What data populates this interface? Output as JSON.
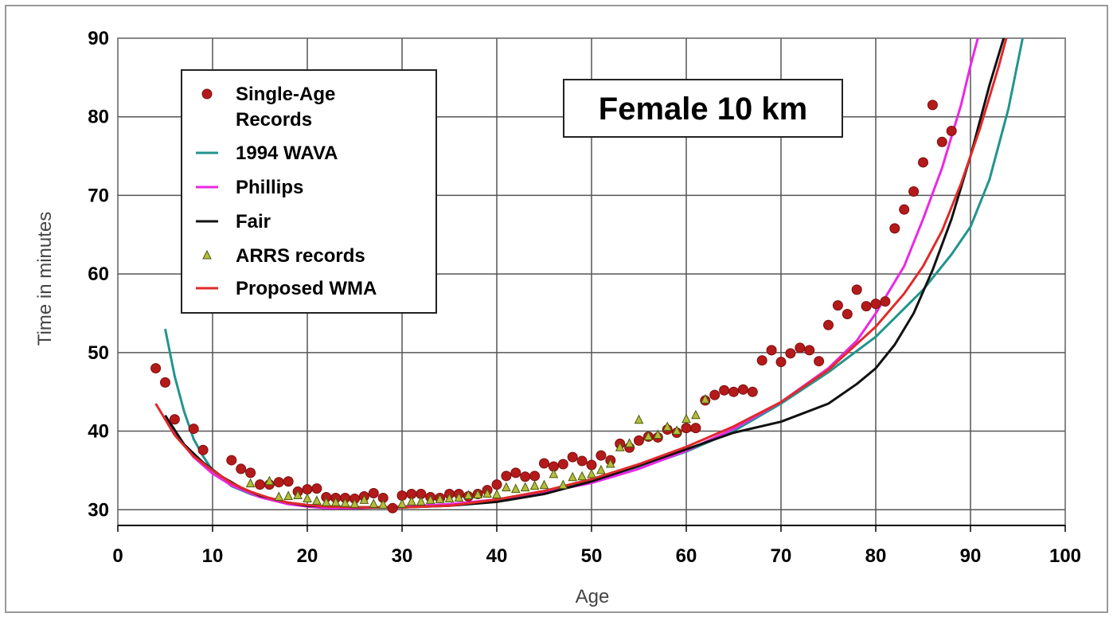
{
  "chart_data": {
    "type": "scatter",
    "title": "Female 10 km",
    "xlabel": "Age",
    "ylabel": "Time in minutes",
    "xlim": [
      0,
      100
    ],
    "ylim": [
      28,
      90
    ],
    "x_ticks": [
      0,
      10,
      20,
      30,
      40,
      50,
      60,
      70,
      80,
      90,
      100
    ],
    "y_ticks": [
      30,
      40,
      50,
      60,
      70,
      80,
      90
    ],
    "grid": true,
    "legend_position": "top-left",
    "series": [
      {
        "name": "Single-Age Records",
        "kind": "points",
        "marker": "circle",
        "color": "#b51a1a",
        "x": [
          4,
          5,
          6,
          8,
          9,
          12,
          13,
          14,
          15,
          16,
          17,
          18,
          19,
          20,
          21,
          22,
          23,
          24,
          25,
          26,
          27,
          28,
          29,
          30,
          31,
          32,
          33,
          34,
          35,
          36,
          37,
          38,
          39,
          40,
          41,
          42,
          43,
          44,
          45,
          46,
          47,
          48,
          49,
          50,
          51,
          52,
          53,
          54,
          55,
          56,
          57,
          58,
          59,
          60,
          61,
          62,
          63,
          64,
          65,
          66,
          67,
          68,
          69,
          70,
          71,
          72,
          73,
          74,
          75,
          76,
          77,
          78,
          79,
          80,
          81,
          82,
          83,
          84,
          85,
          86,
          87,
          88
        ],
        "y": [
          48,
          46.2,
          41.5,
          40.3,
          37.6,
          36.3,
          35.2,
          34.7,
          33.2,
          33.2,
          33.5,
          33.6,
          32.3,
          32.6,
          32.7,
          31.6,
          31.5,
          31.5,
          31.4,
          31.7,
          32.1,
          31.5,
          30.2,
          31.8,
          32,
          32,
          31.6,
          31.5,
          32,
          32,
          31.7,
          32,
          32.5,
          33.2,
          34.3,
          34.7,
          34.2,
          34.3,
          35.9,
          35.5,
          35.8,
          36.7,
          36.2,
          35.7,
          36.9,
          36.3,
          38.4,
          37.9,
          38.8,
          39.3,
          39.2,
          40.2,
          39.8,
          40.4,
          40.4,
          43.9,
          44.6,
          45.2,
          45,
          45.3,
          45,
          49,
          50.3,
          48.8,
          49.9,
          50.6,
          50.3,
          48.9,
          53.5,
          56,
          54.9,
          58,
          55.9,
          56.2,
          56.5,
          65.8,
          68.2,
          70.5,
          74.2,
          81.5,
          76.8,
          78.2
        ]
      },
      {
        "name": "1994 WAVA",
        "kind": "line",
        "color": "#23948e",
        "x": [
          5,
          6,
          7,
          8,
          9,
          10,
          12,
          14,
          16,
          18,
          20,
          22,
          25,
          28,
          30,
          35,
          40,
          45,
          50,
          55,
          60,
          65,
          70,
          75,
          80,
          85,
          88,
          90,
          92,
          94,
          95.5
        ],
        "y": [
          53,
          47,
          42.5,
          39,
          36.8,
          35,
          33,
          32,
          31.3,
          30.9,
          30.6,
          30.4,
          30.3,
          30.3,
          30.3,
          30.6,
          31.3,
          32.3,
          33.7,
          35.3,
          37.4,
          40,
          43.5,
          47.5,
          52,
          58,
          62.5,
          66,
          72,
          81,
          90
        ]
      },
      {
        "name": "Phillips",
        "kind": "line",
        "color": "#ea28e4",
        "x": [
          5,
          6,
          7,
          8,
          10,
          12,
          15,
          18,
          20,
          22,
          25,
          30,
          35,
          40,
          45,
          50,
          55,
          60,
          65,
          70,
          75,
          78,
          80,
          83,
          85,
          87,
          89,
          90,
          91
        ],
        "y": [
          42,
          40,
          38.2,
          36.7,
          34.6,
          33.1,
          31.6,
          30.7,
          30.4,
          30.2,
          30.2,
          30.4,
          30.7,
          31.3,
          32.2,
          33.4,
          35.2,
          37.5,
          40.3,
          43.7,
          48,
          51.5,
          55,
          61,
          67,
          73.5,
          81.5,
          86.5,
          91
        ]
      },
      {
        "name": "Fair",
        "kind": "line",
        "color": "#111111",
        "x": [
          5,
          7,
          9,
          11,
          13,
          15,
          18,
          20,
          25,
          30,
          35,
          40,
          45,
          50,
          55,
          60,
          65,
          70,
          75,
          78,
          80,
          82,
          84,
          86,
          88,
          90,
          92,
          94
        ],
        "y": [
          42,
          38.3,
          36,
          34.2,
          32.8,
          31.8,
          30.9,
          30.5,
          30.3,
          30.3,
          30.5,
          31,
          32,
          33.6,
          35.6,
          37.7,
          39.8,
          41.2,
          43.5,
          46,
          48,
          51,
          55,
          60.5,
          67,
          75,
          84,
          92
        ]
      },
      {
        "name": "ARRS records",
        "kind": "points",
        "marker": "triangle",
        "color": "#b5bd3a",
        "x": [
          14,
          16,
          17,
          18,
          19,
          20,
          21,
          22,
          23,
          24,
          25,
          26,
          27,
          28,
          30,
          31,
          32,
          33,
          34,
          35,
          36,
          37,
          38,
          39,
          40,
          41,
          42,
          43,
          44,
          45,
          46,
          47,
          48,
          49,
          50,
          51,
          52,
          53,
          54,
          55,
          56,
          57,
          58,
          59,
          60,
          61,
          62
        ],
        "y": [
          33.3,
          33.6,
          31.6,
          31.7,
          31.8,
          31.4,
          31.1,
          30.9,
          30.9,
          30.8,
          30.7,
          31.2,
          30.7,
          30.6,
          30.7,
          31,
          31,
          31.2,
          31.3,
          31.4,
          31.5,
          31.8,
          31.9,
          32,
          31.9,
          32.8,
          32.6,
          32.8,
          33,
          33.1,
          34.5,
          33.1,
          34.1,
          34.2,
          34.5,
          35,
          35.8,
          37.9,
          38.4,
          41.4,
          39.3,
          39.5,
          40.5,
          40,
          41.5,
          42,
          44
        ]
      },
      {
        "name": "Proposed WMA",
        "kind": "line",
        "color": "#e02a2a",
        "x": [
          4,
          6,
          8,
          10,
          12,
          14,
          16,
          18,
          20,
          22,
          25,
          30,
          35,
          40,
          45,
          50,
          55,
          60,
          65,
          70,
          75,
          80,
          83,
          85,
          87,
          89,
          91,
          93,
          94
        ],
        "y": [
          43.5,
          39.5,
          36.8,
          35,
          33.4,
          32.3,
          31.5,
          30.9,
          30.6,
          30.4,
          30.3,
          30.3,
          30.5,
          31.3,
          32.4,
          33.9,
          35.8,
          38,
          40.6,
          43.7,
          47.8,
          53.3,
          57.5,
          61,
          65.5,
          71.5,
          78.5,
          86.5,
          91
        ]
      }
    ]
  }
}
